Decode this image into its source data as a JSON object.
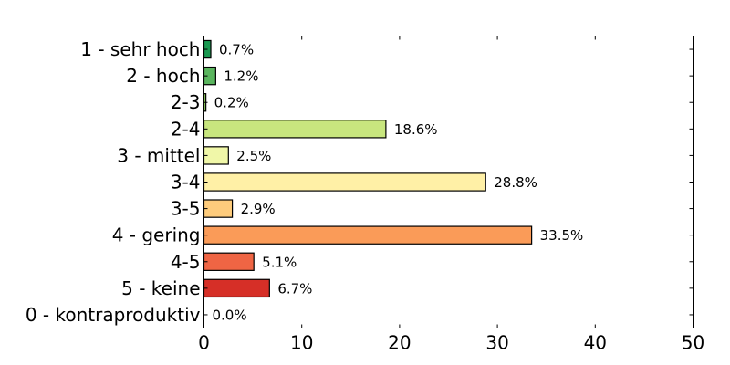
{
  "chart_data": {
    "type": "bar",
    "orientation": "horizontal",
    "title": "",
    "xlabel": "",
    "ylabel": "",
    "xlim": [
      0,
      50
    ],
    "xticks": [
      0,
      10,
      20,
      30,
      40,
      50
    ],
    "grid": false,
    "legend": null,
    "categories": [
      "1 - sehr hoch",
      "2 - hoch",
      "2-3",
      "2-4",
      "3 - mittel",
      "3-4",
      "3-5",
      "4 - gering",
      "4-5",
      "5 - keine",
      "0 - kontraproduktiv"
    ],
    "values": [
      0.7,
      1.2,
      0.2,
      18.6,
      2.5,
      28.8,
      2.9,
      33.5,
      5.1,
      6.7,
      0.0
    ],
    "value_labels": [
      "0.7%",
      "1.2%",
      "0.2%",
      "18.6%",
      "2.5%",
      "28.8%",
      "2.9%",
      "33.5%",
      "5.1%",
      "6.7%",
      "0.0%"
    ],
    "colors": [
      "#1a9850",
      "#5ab55e",
      "#91cf60",
      "#c8e67e",
      "#f0f7a8",
      "#fff0a6",
      "#fecc7c",
      "#fa9b58",
      "#ef6544",
      "#d62f27",
      "#a50026"
    ]
  }
}
